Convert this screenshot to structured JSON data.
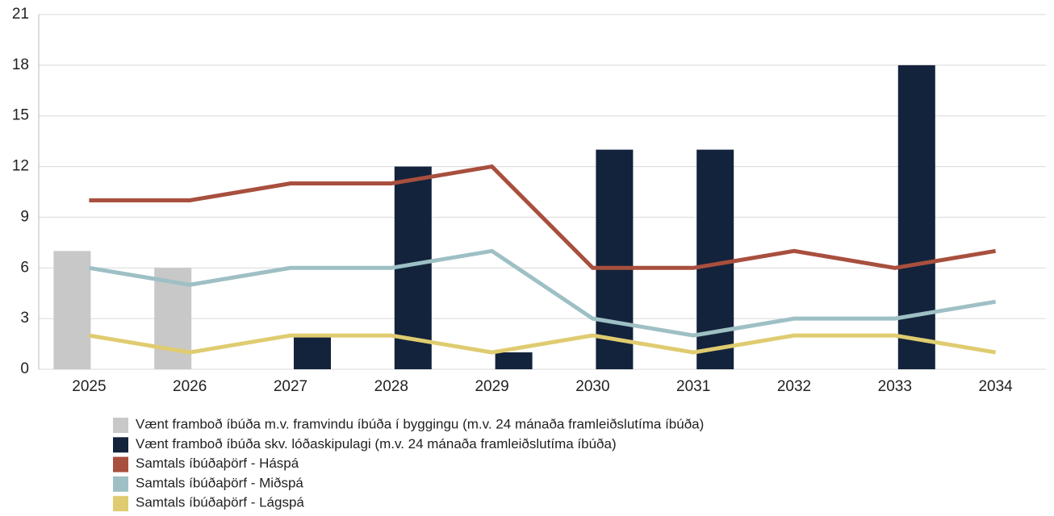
{
  "chart_data": {
    "type": "bar",
    "categories": [
      "2025",
      "2026",
      "2027",
      "2028",
      "2029",
      "2030",
      "2031",
      "2032",
      "2033",
      "2034"
    ],
    "series": [
      {
        "name": "Vænt framboð íbúða m.v. framvindu íbúða í byggingu (m.v. 24 mánaða framleiðslutíma íbúða)",
        "type": "bar",
        "color": "#c8c8c8",
        "values": [
          7,
          6,
          null,
          null,
          null,
          null,
          null,
          null,
          null,
          null
        ]
      },
      {
        "name": "Vænt framboð íbúða skv. lóðaskipulagi (m.v. 24 mánaða framleiðslutíma íbúða)",
        "type": "bar",
        "color": "#13233b",
        "values": [
          null,
          null,
          2,
          12,
          1,
          13,
          13,
          null,
          18,
          null
        ]
      },
      {
        "name": "Samtals íbúðaþörf -  Háspá",
        "type": "line",
        "color": "#a84f3e",
        "values": [
          10,
          10,
          11,
          11,
          12,
          6,
          6,
          7,
          6,
          7
        ]
      },
      {
        "name": "Samtals íbúðaþörf -  Miðspá",
        "type": "line",
        "color": "#9ec0c5",
        "values": [
          6,
          5,
          6,
          6,
          7,
          3,
          2,
          3,
          3,
          4
        ]
      },
      {
        "name": "Samtals íbúðaþörf -  Lágspá",
        "type": "line",
        "color": "#dfcc70",
        "values": [
          2,
          1,
          2,
          2,
          1,
          2,
          1,
          2,
          2,
          1
        ]
      }
    ],
    "ylim": [
      0,
      21
    ],
    "yticks": [
      0,
      3,
      6,
      9,
      12,
      15,
      18,
      21
    ],
    "grid": true
  }
}
